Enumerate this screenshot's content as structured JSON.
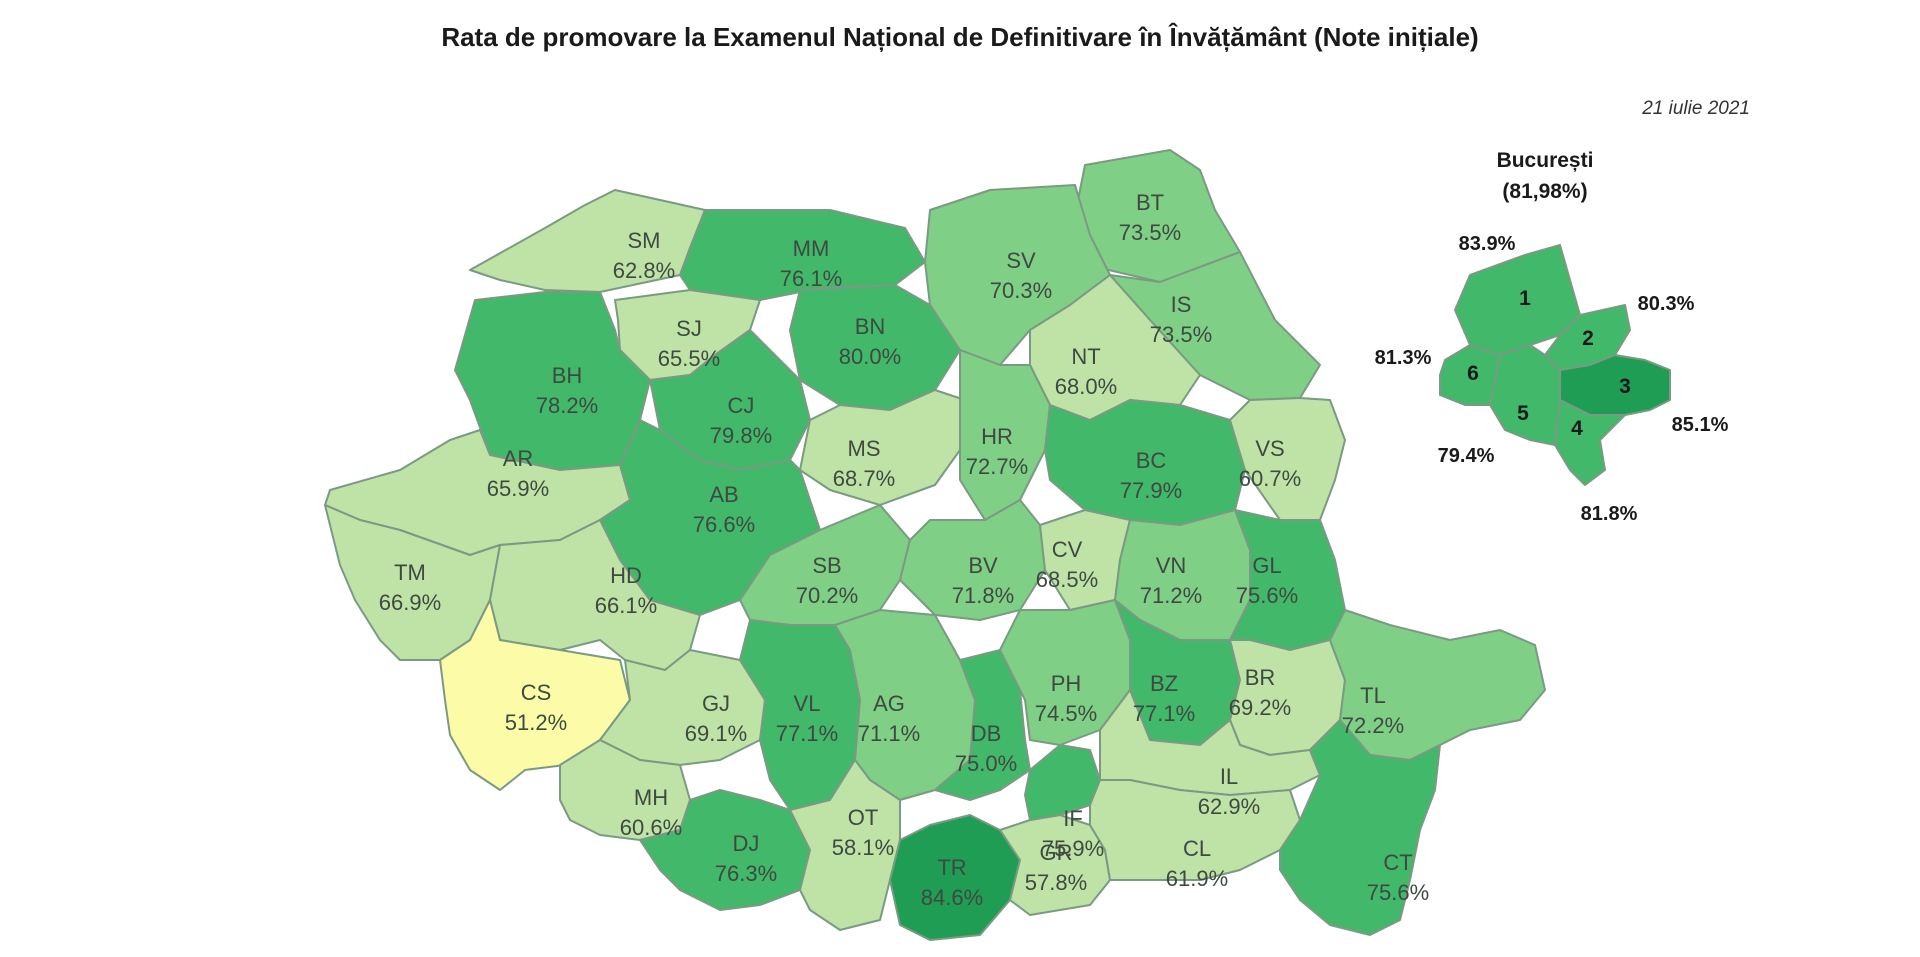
{
  "title": "Rata de promovare la Examenul Național de Definitivare în Învățământ (Note inițiale)",
  "date": "21 iulie 2021",
  "colors": {
    "very_low": "#fbfba8",
    "low": "#bfe3a6",
    "mid": "#7fcf86",
    "high": "#41b86a",
    "very_high": "#1f9d55",
    "border": "#7a9a82"
  },
  "counties": [
    {
      "code": "SM",
      "value": "62.8%",
      "rate": 62.8
    },
    {
      "code": "MM",
      "value": "76.1%",
      "rate": 76.1
    },
    {
      "code": "BT",
      "value": "73.5%",
      "rate": 73.5
    },
    {
      "code": "SV",
      "value": "70.3%",
      "rate": 70.3
    },
    {
      "code": "IS",
      "value": "73.5%",
      "rate": 73.5
    },
    {
      "code": "SJ",
      "value": "65.5%",
      "rate": 65.5
    },
    {
      "code": "BN",
      "value": "80.0%",
      "rate": 80.0
    },
    {
      "code": "NT",
      "value": "68.0%",
      "rate": 68.0
    },
    {
      "code": "BH",
      "value": "78.2%",
      "rate": 78.2
    },
    {
      "code": "CJ",
      "value": "79.8%",
      "rate": 79.8
    },
    {
      "code": "MS",
      "value": "68.7%",
      "rate": 68.7
    },
    {
      "code": "HR",
      "value": "72.7%",
      "rate": 72.7
    },
    {
      "code": "BC",
      "value": "77.9%",
      "rate": 77.9
    },
    {
      "code": "VS",
      "value": "60.7%",
      "rate": 60.7
    },
    {
      "code": "AR",
      "value": "65.9%",
      "rate": 65.9
    },
    {
      "code": "AB",
      "value": "76.6%",
      "rate": 76.6
    },
    {
      "code": "TM",
      "value": "66.9%",
      "rate": 66.9
    },
    {
      "code": "HD",
      "value": "66.1%",
      "rate": 66.1
    },
    {
      "code": "SB",
      "value": "70.2%",
      "rate": 70.2
    },
    {
      "code": "BV",
      "value": "71.8%",
      "rate": 71.8
    },
    {
      "code": "CV",
      "value": "68.5%",
      "rate": 68.5
    },
    {
      "code": "VN",
      "value": "71.2%",
      "rate": 71.2
    },
    {
      "code": "GL",
      "value": "75.6%",
      "rate": 75.6
    },
    {
      "code": "CS",
      "value": "51.2%",
      "rate": 51.2
    },
    {
      "code": "GJ",
      "value": "69.1%",
      "rate": 69.1
    },
    {
      "code": "VL",
      "value": "77.1%",
      "rate": 77.1
    },
    {
      "code": "AG",
      "value": "71.1%",
      "rate": 71.1
    },
    {
      "code": "DB",
      "value": "75.0%",
      "rate": 75.0
    },
    {
      "code": "PH",
      "value": "74.5%",
      "rate": 74.5
    },
    {
      "code": "BZ",
      "value": "77.1%",
      "rate": 77.1
    },
    {
      "code": "BR",
      "value": "69.2%",
      "rate": 69.2
    },
    {
      "code": "TL",
      "value": "72.2%",
      "rate": 72.2
    },
    {
      "code": "MH",
      "value": "60.6%",
      "rate": 60.6
    },
    {
      "code": "DJ",
      "value": "76.3%",
      "rate": 76.3
    },
    {
      "code": "OT",
      "value": "58.1%",
      "rate": 58.1
    },
    {
      "code": "TR",
      "value": "84.6%",
      "rate": 84.6
    },
    {
      "code": "GR",
      "value": "57.8%",
      "rate": 57.8
    },
    {
      "code": "IF",
      "value": "75.9%",
      "rate": 75.9
    },
    {
      "code": "IL",
      "value": "62.9%",
      "rate": 62.9
    },
    {
      "code": "CL",
      "value": "61.9%",
      "rate": 61.9
    },
    {
      "code": "CT",
      "value": "75.6%",
      "rate": 75.6
    }
  ],
  "bucuresti": {
    "name": "București",
    "total": "(81,98%)",
    "sectors": [
      {
        "num": "1",
        "value": "83.9%",
        "rate": 83.9
      },
      {
        "num": "2",
        "value": "80.3%",
        "rate": 80.3
      },
      {
        "num": "3",
        "value": "85.1%",
        "rate": 85.1
      },
      {
        "num": "4",
        "value": "81.8%",
        "rate": 81.8
      },
      {
        "num": "5",
        "value": "79.4%",
        "rate": 79.4
      },
      {
        "num": "6",
        "value": "81.3%",
        "rate": 81.3
      }
    ]
  }
}
